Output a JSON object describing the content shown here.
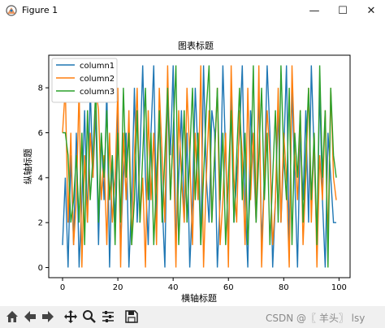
{
  "window": {
    "title": "Figure 1",
    "minimize_glyph": "—",
    "maximize_glyph": "☐",
    "close_glyph": "✕"
  },
  "toolbar": {
    "buttons": [
      "home-icon",
      "back-icon",
      "forward-icon",
      "pan-icon",
      "zoom-icon",
      "configure-icon",
      "save-icon"
    ]
  },
  "watermark": {
    "text": "CSDN @〖 羊头〗 lsy"
  },
  "colors": {
    "column1": "#1f77b4",
    "column2": "#ff7f0e",
    "column3": "#2ca02c"
  },
  "chart_data": {
    "type": "line",
    "title": "图表标题",
    "xlabel": "横轴标题",
    "ylabel": "纵轴标题",
    "xlim": [
      -5,
      104
    ],
    "ylim": [
      -0.45,
      9.45
    ],
    "xticks": [
      0,
      20,
      40,
      60,
      80,
      100
    ],
    "yticks": [
      0,
      2,
      4,
      6,
      8
    ],
    "grid": false,
    "legend_position": "upper-left",
    "x": [
      0,
      1,
      2,
      3,
      4,
      5,
      6,
      7,
      8,
      9,
      10,
      11,
      12,
      13,
      14,
      15,
      16,
      17,
      18,
      19,
      20,
      21,
      22,
      23,
      24,
      25,
      26,
      27,
      28,
      29,
      30,
      31,
      32,
      33,
      34,
      35,
      36,
      37,
      38,
      39,
      40,
      41,
      42,
      43,
      44,
      45,
      46,
      47,
      48,
      49,
      50,
      51,
      52,
      53,
      54,
      55,
      56,
      57,
      58,
      59,
      60,
      61,
      62,
      63,
      64,
      65,
      66,
      67,
      68,
      69,
      70,
      71,
      72,
      73,
      74,
      75,
      76,
      77,
      78,
      79,
      80,
      81,
      82,
      83,
      84,
      85,
      86,
      87,
      88,
      89,
      90,
      91,
      92,
      93,
      94,
      95,
      96,
      97,
      98,
      99
    ],
    "series": [
      {
        "name": "column1",
        "values": [
          1,
          4,
          0,
          5,
          1,
          6,
          0,
          3,
          7,
          2,
          8,
          4,
          7,
          1,
          6,
          3,
          8,
          0,
          5,
          2,
          7,
          1,
          4,
          6,
          0,
          3,
          8,
          2,
          5,
          9,
          4,
          1,
          6,
          9,
          2,
          7,
          3,
          0,
          8,
          5,
          9,
          1,
          4,
          7,
          2,
          6,
          0,
          3,
          8,
          5,
          1,
          9,
          4,
          2,
          7,
          6,
          0,
          3,
          9,
          5,
          1,
          8,
          2,
          4,
          6,
          9,
          3,
          0,
          7,
          5,
          2,
          8,
          1,
          4,
          9,
          6,
          0,
          3,
          7,
          2,
          5,
          9,
          1,
          8,
          4,
          0,
          6,
          3,
          7,
          2,
          9,
          5,
          1,
          8,
          3,
          0,
          6,
          4,
          2,
          2
        ]
      },
      {
        "name": "column2",
        "values": [
          6,
          8,
          2,
          6,
          1,
          3,
          8,
          0,
          5,
          2,
          6,
          4,
          8,
          7,
          3,
          5,
          1,
          6,
          2,
          4,
          8,
          0,
          6,
          3,
          7,
          1,
          5,
          8,
          2,
          4,
          0,
          7,
          3,
          6,
          1,
          8,
          5,
          2,
          9,
          3,
          6,
          0,
          7,
          4,
          2,
          8,
          5,
          1,
          6,
          3,
          9,
          0,
          4,
          7,
          2,
          5,
          8,
          1,
          3,
          6,
          0,
          9,
          4,
          2,
          7,
          5,
          1,
          8,
          3,
          6,
          2,
          9,
          0,
          4,
          7,
          5,
          1,
          3,
          8,
          2,
          6,
          4,
          0,
          9,
          5,
          3,
          7,
          1,
          4,
          8,
          2,
          6,
          0,
          5,
          3,
          7,
          1,
          8,
          4,
          3
        ]
      },
      {
        "name": "column3",
        "values": [
          6,
          6,
          5,
          2,
          3,
          5,
          2,
          6,
          1,
          7,
          3,
          5,
          8,
          2,
          6,
          4,
          7,
          3,
          5,
          1,
          6,
          2,
          8,
          4,
          6,
          1,
          3,
          7,
          2,
          5,
          8,
          3,
          6,
          1,
          4,
          7,
          2,
          5,
          8,
          3,
          6,
          9,
          1,
          4,
          7,
          2,
          5,
          8,
          3,
          6,
          1,
          4,
          7,
          9,
          2,
          5,
          8,
          3,
          6,
          1,
          4,
          7,
          2,
          5,
          8,
          3,
          6,
          1,
          4,
          9,
          2,
          5,
          8,
          3,
          6,
          1,
          4,
          7,
          2,
          9,
          5,
          3,
          8,
          1,
          6,
          4,
          7,
          2,
          5,
          8,
          3,
          6,
          1,
          9,
          4,
          7,
          0,
          8,
          5,
          4
        ]
      }
    ]
  }
}
